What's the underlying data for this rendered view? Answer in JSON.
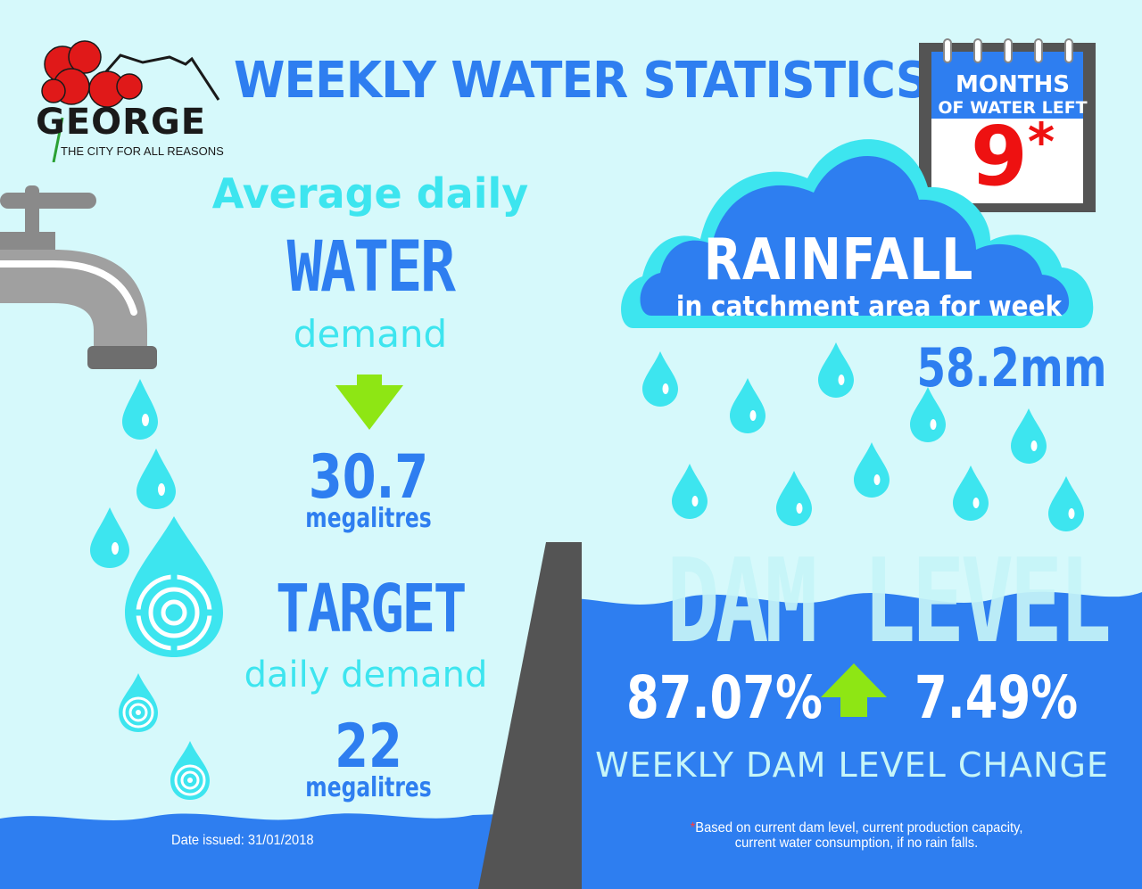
{
  "header": {
    "title": "WEEKLY WATER STATISTICS"
  },
  "logo": {
    "name": "GEORGE",
    "tagline": "THE CITY FOR ALL REASONS"
  },
  "calendar": {
    "line1": "MONTHS",
    "line2": "OF WATER LEFT",
    "value": "9",
    "asterisk": "*"
  },
  "demand": {
    "intro": "Average daily",
    "headline": "WATER",
    "subline": "demand",
    "value": "30.7",
    "unit": "megalitres",
    "trend": "down",
    "target_headline": "TARGET",
    "target_subline": "daily demand",
    "target_value": "22",
    "target_unit": "megalitres"
  },
  "rainfall": {
    "title": "RAINFALL",
    "subtitle": "in catchment area for week",
    "value": "58.2mm"
  },
  "dam": {
    "title": "DAM LEVEL",
    "level": "87.07%",
    "trend": "up",
    "change": "7.49%",
    "change_label": "WEEKLY DAM LEVEL CHANGE"
  },
  "footer": {
    "date_issued": "Date issued: 31/01/2018",
    "note_asterisk": "*",
    "note_line1": "Based on current dam level, current production capacity,",
    "note_line2": "current water consumption, if no rain falls."
  },
  "colors": {
    "background": "#d6f9fb",
    "primary_blue": "#2e7ef0",
    "cyan": "#3de5ef",
    "arrow_green": "#8ee614",
    "dam_wall": "#555555",
    "logo_red": "#e01919"
  }
}
